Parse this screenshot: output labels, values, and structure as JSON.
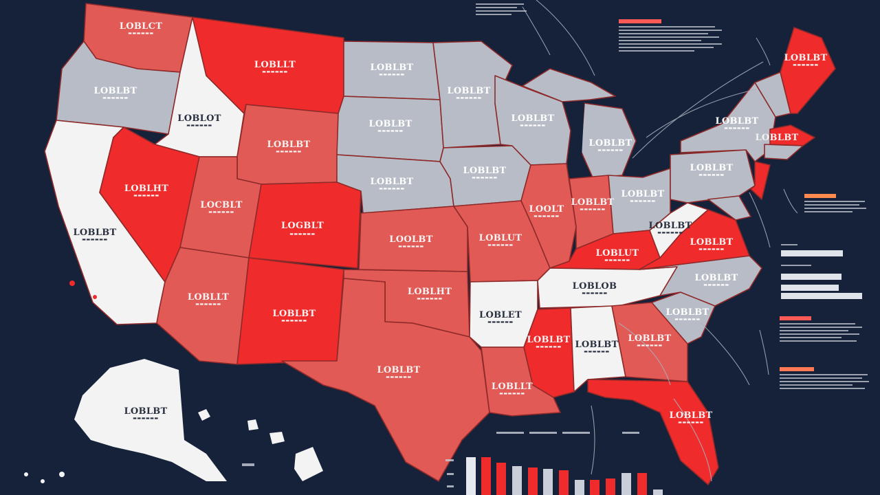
{
  "colors": {
    "background": "#16213a",
    "red_strong": "#ef2b2b",
    "red_light": "#e25a55",
    "gray": "#b7bcc6",
    "white": "#f3f3f3",
    "border": "#8e2a2a"
  }
}
